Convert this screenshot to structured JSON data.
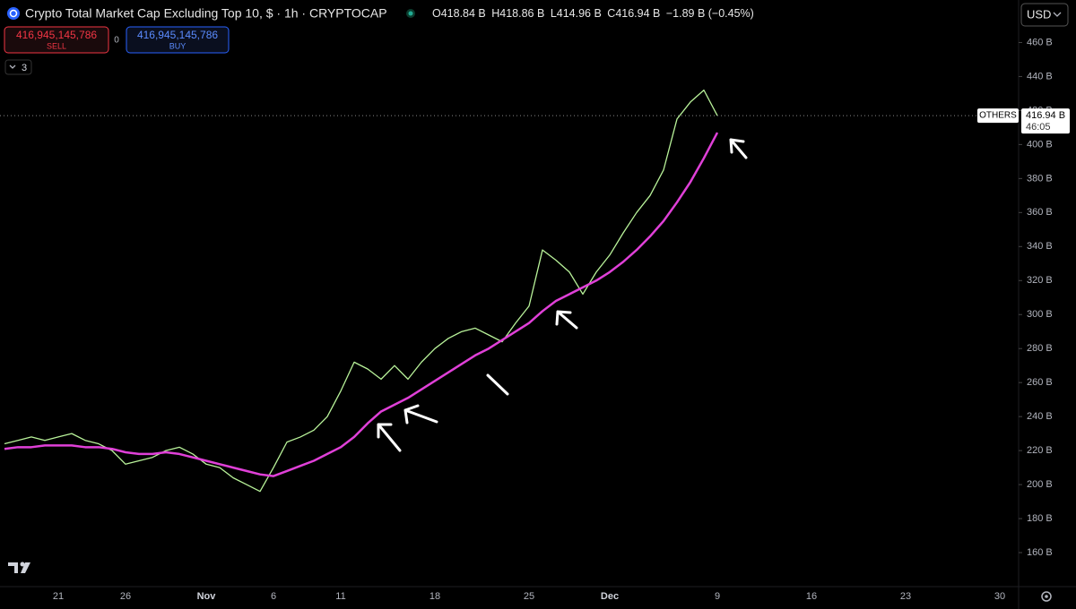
{
  "ui": {
    "header_title": "Crypto Total Market Cap Excluding Top 10, $ · 1h · CRYPTOCAP",
    "ohlc": [
      "O418.84 B",
      "H418.86 B",
      "L414.96 B",
      "C416.94 B"
    ],
    "change": "−1.89 B (−0.45%)",
    "sell_price": "416,945,145,786",
    "sell_label": "SELL",
    "spread": "0",
    "buy_price": "416,945,145,786",
    "buy_label": "BUY",
    "indicator_count": "3",
    "currency": "USD",
    "last_price_label": "416.94 B",
    "countdown": "46:05"
  },
  "chart_data": {
    "type": "line",
    "categories": [
      null,
      null,
      null,
      null,
      "21",
      null,
      null,
      null,
      null,
      "26",
      null,
      null,
      null,
      null,
      null,
      "Nov",
      null,
      null,
      null,
      null,
      "6",
      null,
      null,
      null,
      null,
      "11",
      null,
      null,
      null,
      null,
      null,
      null,
      "18",
      null,
      null,
      null,
      null,
      null,
      null,
      "25",
      null,
      null,
      null,
      null,
      null,
      "Dec",
      null,
      null,
      null,
      null,
      null,
      null,
      null,
      "9",
      null,
      null,
      null,
      null,
      null,
      null,
      "16",
      null,
      null,
      null,
      null,
      null,
      null,
      "23",
      null,
      null,
      null,
      null,
      null,
      null,
      "30",
      null
    ],
    "series": [
      {
        "name": "OTHERS",
        "color": "#b9f39a",
        "values": [
          224,
          226,
          228,
          226,
          228,
          230,
          226,
          224,
          220,
          212,
          214,
          216,
          220,
          222,
          218,
          212,
          210,
          204,
          200,
          196,
          210,
          225,
          228,
          232,
          240,
          255,
          272,
          268,
          262,
          270,
          262,
          272,
          280,
          286,
          290,
          292,
          288,
          284,
          295,
          305,
          338,
          332,
          325,
          312,
          325,
          335,
          348,
          360,
          370,
          385,
          415,
          425,
          432,
          417,
          null,
          null,
          null,
          null,
          null,
          null,
          null,
          null,
          null,
          null,
          null,
          null,
          null,
          null,
          null,
          null,
          null,
          null,
          null,
          null,
          null,
          null
        ]
      },
      {
        "color": "#e040d8",
        "values": [
          221,
          222,
          222,
          223,
          223,
          223,
          222,
          222,
          221,
          219,
          218,
          218,
          219,
          218,
          216,
          214,
          212,
          210,
          208,
          206,
          205,
          208,
          211,
          214,
          218,
          222,
          228,
          236,
          243,
          247,
          251,
          256,
          261,
          266,
          271,
          276,
          280,
          285,
          290,
          295,
          302,
          308,
          312,
          316,
          320,
          325,
          331,
          338,
          346,
          355,
          366,
          378,
          392,
          407,
          null,
          null,
          null,
          null,
          null,
          null,
          null,
          null,
          null,
          null,
          null,
          null,
          null,
          null,
          null,
          null,
          null,
          null,
          null,
          null,
          null,
          null
        ]
      }
    ],
    "ylim": [
      140,
      485
    ],
    "yticks": [
      {
        "value": 160,
        "label": "160 B"
      },
      {
        "value": 180,
        "label": "180 B"
      },
      {
        "value": 200,
        "label": "200 B"
      },
      {
        "value": 220,
        "label": "220 B"
      },
      {
        "value": 240,
        "label": "240 B"
      },
      {
        "value": 260,
        "label": "260 B"
      },
      {
        "value": 280,
        "label": "280 B"
      },
      {
        "value": 300,
        "label": "300 B"
      },
      {
        "value": 320,
        "label": "320 B"
      },
      {
        "value": 340,
        "label": "340 B"
      },
      {
        "value": 360,
        "label": "360 B"
      },
      {
        "value": 380,
        "label": "380 B"
      },
      {
        "value": 400,
        "label": "400 B"
      },
      {
        "value": 420,
        "label": "420 B"
      },
      {
        "value": 440,
        "label": "440 B"
      },
      {
        "value": 460,
        "label": "460 B"
      }
    ],
    "grid": false
  }
}
